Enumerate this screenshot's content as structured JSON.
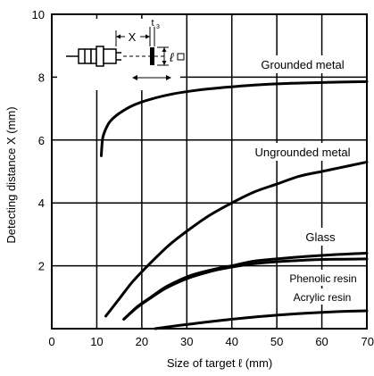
{
  "chart_data": {
    "type": "line",
    "title": "",
    "xlabel": "Size of target ℓ (mm)",
    "ylabel": "Detecting distance X (mm)",
    "xlim": [
      0,
      70
    ],
    "ylim": [
      0,
      10
    ],
    "xticks": [
      0,
      10,
      20,
      30,
      40,
      50,
      60,
      70
    ],
    "yticks": [
      2,
      4,
      6,
      8,
      10
    ],
    "grid": true,
    "series": [
      {
        "name": "Grounded metal",
        "x": [
          11,
          11.3,
          12,
          13,
          15,
          18,
          22,
          27,
          32,
          38,
          45,
          52,
          60,
          70
        ],
        "y": [
          5.5,
          6.05,
          6.35,
          6.6,
          6.85,
          7.1,
          7.3,
          7.47,
          7.58,
          7.67,
          7.75,
          7.8,
          7.83,
          7.86
        ]
      },
      {
        "name": "Ungrounded metal",
        "x": [
          12,
          15,
          18,
          22,
          26,
          30,
          35,
          40,
          45,
          50,
          55,
          60,
          65,
          70
        ],
        "y": [
          0.4,
          0.95,
          1.5,
          2.1,
          2.65,
          3.1,
          3.6,
          4.0,
          4.35,
          4.6,
          4.85,
          5.0,
          5.15,
          5.3
        ]
      },
      {
        "name": "Glass",
        "x": [
          16,
          19,
          22,
          25,
          28,
          31,
          34,
          37,
          40,
          45,
          50,
          55,
          60,
          65,
          70
        ],
        "y": [
          0.3,
          0.7,
          1.0,
          1.3,
          1.52,
          1.7,
          1.82,
          1.92,
          2.0,
          2.15,
          2.22,
          2.28,
          2.33,
          2.37,
          2.4
        ]
      },
      {
        "name": "Phenolic resin",
        "x": [
          16,
          19,
          22,
          25,
          28,
          31,
          34,
          37,
          40,
          45,
          50,
          55,
          60,
          65,
          70
        ],
        "y": [
          0.3,
          0.68,
          0.98,
          1.26,
          1.47,
          1.64,
          1.77,
          1.88,
          1.96,
          2.07,
          2.13,
          2.17,
          2.2,
          2.21,
          2.22
        ]
      },
      {
        "name": "Acrylic resin",
        "x": [
          23,
          27,
          31,
          35,
          40,
          45,
          50,
          55,
          60,
          65,
          70
        ],
        "y": [
          0.0,
          0.08,
          0.15,
          0.22,
          0.3,
          0.37,
          0.43,
          0.48,
          0.52,
          0.55,
          0.57
        ]
      }
    ],
    "inset_labels": {
      "distance": "X",
      "thickness": "t",
      "thickness_sub": "3",
      "size": "ℓ"
    }
  }
}
